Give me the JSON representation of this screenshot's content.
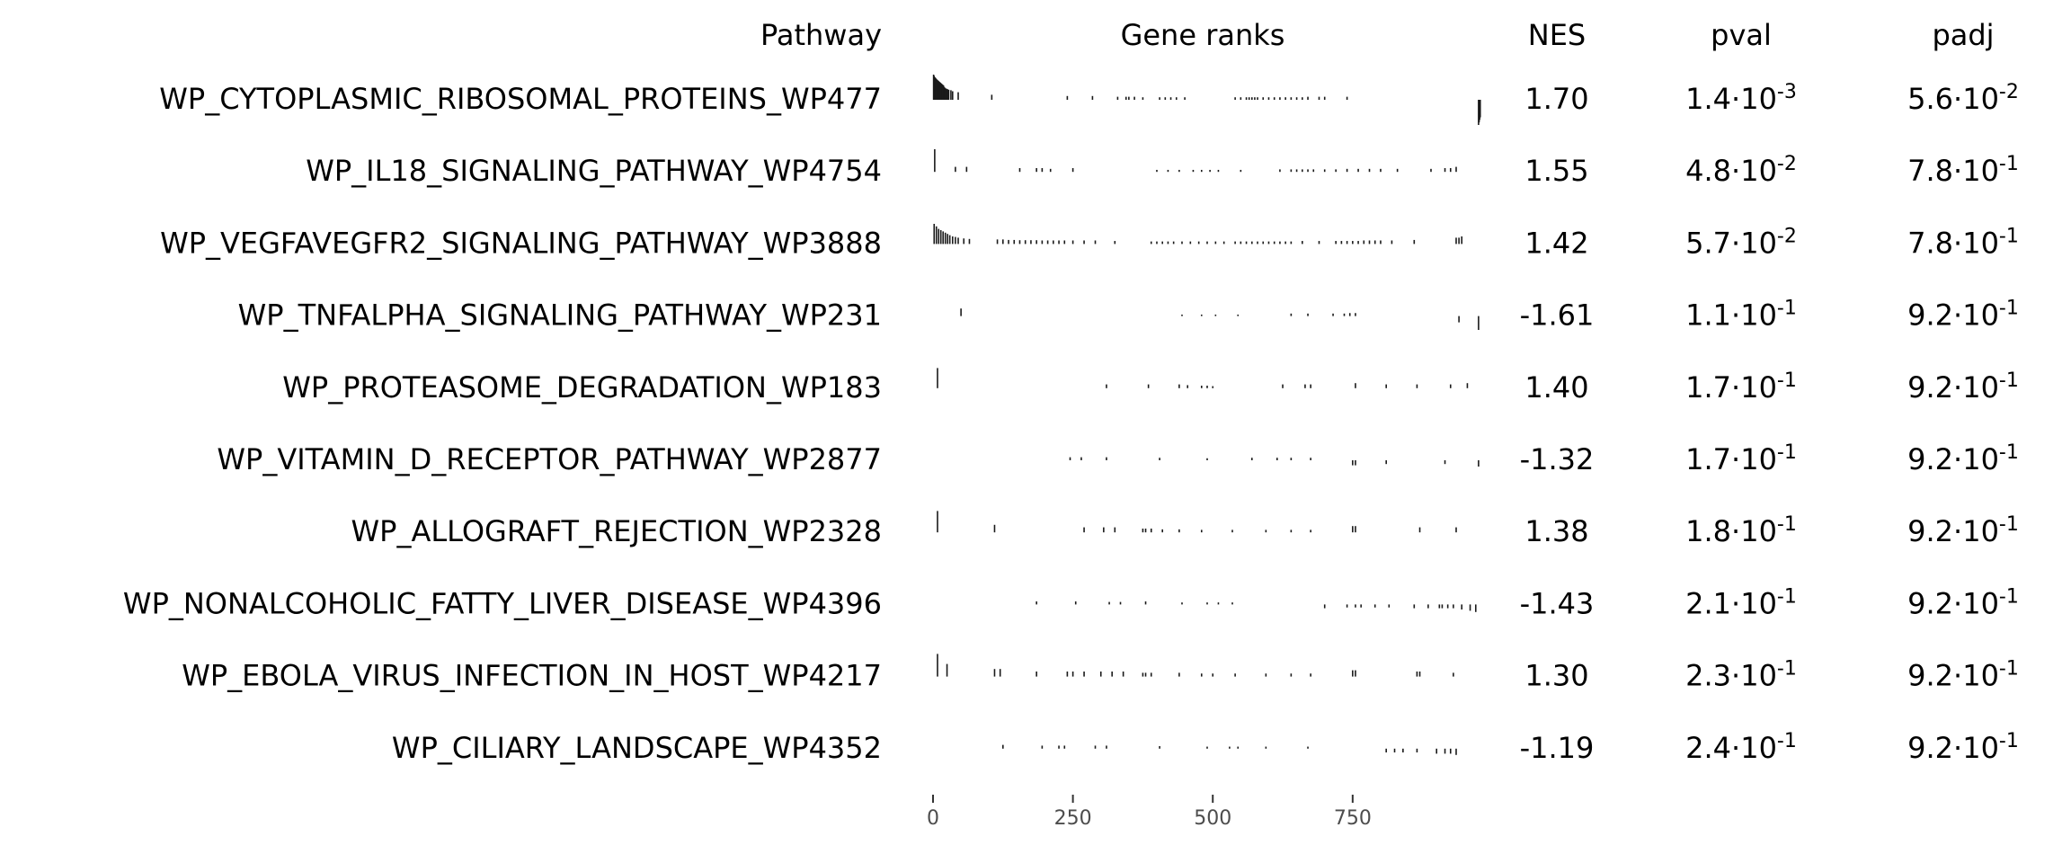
{
  "headers": {
    "pathway": "Pathway",
    "gene_ranks": "Gene ranks",
    "nes": "NES",
    "pval": "pval",
    "padj": "padj"
  },
  "chart_data": {
    "type": "table",
    "description_free": true,
    "x_axis": {
      "ticks": [
        0,
        250,
        500,
        750
      ],
      "range": [
        0,
        980
      ]
    },
    "rows": [
      {
        "pathway": "WP_CYTOPLASMIC_RIBOSOMAL_PROTEINS_WP477",
        "nes": "1.70",
        "pval_mant": "1.4",
        "pval_exp": "-3",
        "padj_mant": "5.6",
        "padj_exp": "-2",
        "direction": "up",
        "ranks": [
          1,
          2,
          3,
          4,
          5,
          6,
          7,
          8,
          9,
          10,
          11,
          12,
          13,
          14,
          15,
          16,
          17,
          18,
          19,
          20,
          21,
          22,
          24,
          26,
          28,
          32,
          35,
          45,
          105,
          240,
          285,
          330,
          345,
          350,
          360,
          375,
          405,
          415,
          425,
          435,
          450,
          540,
          550,
          560,
          565,
          570,
          575,
          580,
          590,
          600,
          610,
          620,
          630,
          640,
          650,
          660,
          670,
          690,
          700,
          740,
          975,
          976,
          977,
          978
        ],
        "heights": [
          1.0,
          0.95,
          0.9,
          0.88,
          0.85,
          0.82,
          0.8,
          0.78,
          0.76,
          0.74,
          0.72,
          0.7,
          0.68,
          0.66,
          0.64,
          0.62,
          0.6,
          0.58,
          0.56,
          0.5,
          0.48,
          0.46,
          0.44,
          0.42,
          0.4,
          0.38,
          0.34,
          0.3,
          0.2,
          0.15,
          0.15,
          0.12,
          0.12,
          0.12,
          0.12,
          0.1,
          0.1,
          0.1,
          0.1,
          0.1,
          0.1,
          0.1,
          0.1,
          0.1,
          0.1,
          0.1,
          0.1,
          0.1,
          0.1,
          0.1,
          0.1,
          0.1,
          0.1,
          0.1,
          0.1,
          0.1,
          0.12,
          0.12,
          0.12,
          0.12,
          -1.0,
          -0.9,
          -0.8,
          -0.7
        ]
      },
      {
        "pathway": "WP_IL18_SIGNALING_PATHWAY_WP4754",
        "nes": "1.55",
        "pval_mant": "4.8",
        "pval_exp": "-2",
        "padj_mant": "7.8",
        "padj_exp": "-1",
        "direction": "up",
        "ranks": [
          3,
          40,
          60,
          155,
          185,
          195,
          210,
          250,
          400,
          420,
          440,
          465,
          480,
          495,
          510,
          550,
          620,
          640,
          650,
          660,
          670,
          680,
          700,
          720,
          740,
          760,
          780,
          800,
          830,
          890,
          915,
          925,
          935
        ],
        "heights": [
          0.9,
          0.2,
          0.2,
          0.15,
          0.15,
          0.15,
          0.12,
          0.15,
          0.08,
          0.08,
          0.08,
          0.08,
          0.08,
          0.08,
          0.08,
          0.08,
          0.1,
          0.1,
          0.1,
          0.1,
          0.1,
          0.1,
          0.1,
          0.1,
          0.12,
          0.12,
          0.12,
          0.12,
          0.12,
          0.12,
          0.15,
          0.15,
          0.2
        ]
      },
      {
        "pathway": "WP_VEGFAVEGFR2_SIGNALING_PATHWAY_WP3888",
        "nes": "1.42",
        "pval_mant": "5.7",
        "pval_exp": "-2",
        "padj_mant": "7.8",
        "padj_exp": "-1",
        "direction": "up",
        "ranks": [
          2,
          6,
          10,
          14,
          18,
          22,
          26,
          30,
          35,
          40,
          45,
          55,
          65,
          115,
          125,
          135,
          145,
          155,
          165,
          175,
          185,
          195,
          205,
          215,
          225,
          235,
          250,
          270,
          290,
          325,
          390,
          400,
          410,
          420,
          430,
          445,
          460,
          475,
          490,
          505,
          520,
          540,
          550,
          560,
          570,
          580,
          590,
          600,
          610,
          620,
          630,
          640,
          660,
          690,
          720,
          730,
          740,
          750,
          760,
          770,
          780,
          790,
          800,
          820,
          860,
          935,
          940,
          945
        ],
        "heights": [
          0.8,
          0.7,
          0.6,
          0.55,
          0.5,
          0.45,
          0.4,
          0.35,
          0.3,
          0.28,
          0.25,
          0.22,
          0.2,
          0.18,
          0.18,
          0.16,
          0.16,
          0.15,
          0.15,
          0.15,
          0.15,
          0.14,
          0.14,
          0.14,
          0.14,
          0.14,
          0.14,
          0.14,
          0.14,
          0.12,
          0.1,
          0.1,
          0.1,
          0.1,
          0.1,
          0.1,
          0.1,
          0.1,
          0.1,
          0.1,
          0.1,
          0.1,
          0.1,
          0.1,
          0.1,
          0.1,
          0.1,
          0.1,
          0.1,
          0.1,
          0.1,
          0.1,
          0.12,
          0.12,
          0.12,
          0.12,
          0.12,
          0.12,
          0.12,
          0.14,
          0.14,
          0.14,
          0.14,
          0.14,
          0.16,
          0.25,
          0.25,
          0.3
        ]
      },
      {
        "pathway": "WP_TNFALPHA_SIGNALING_PATHWAY_WP231",
        "nes": "-1.61",
        "pval_mant": "1.1",
        "pval_exp": "-1",
        "padj_mant": "9.2",
        "padj_exp": "-1",
        "direction": "down",
        "ranks": [
          50,
          445,
          480,
          505,
          545,
          640,
          670,
          715,
          735,
          745,
          755,
          940,
          975
        ],
        "heights": [
          0.3,
          0.06,
          0.06,
          0.06,
          0.06,
          0.1,
          0.1,
          0.1,
          0.1,
          0.12,
          0.12,
          -0.25,
          -0.55
        ]
      },
      {
        "pathway": "WP_PROTEASOME_DEGRADATION_WP183",
        "nes": "1.40",
        "pval_mant": "1.7",
        "pval_exp": "-1",
        "padj_mant": "9.2",
        "padj_exp": "-1",
        "direction": "up",
        "ranks": [
          8,
          310,
          385,
          440,
          455,
          480,
          490,
          500,
          625,
          665,
          675,
          755,
          810,
          865,
          925,
          955
        ],
        "heights": [
          0.8,
          0.15,
          0.15,
          0.15,
          0.12,
          0.1,
          0.1,
          0.08,
          0.15,
          0.15,
          0.15,
          0.2,
          0.15,
          0.15,
          0.15,
          0.2
        ]
      },
      {
        "pathway": "WP_VITAMIN_D_RECEPTOR_PATHWAY_WP2877",
        "nes": "-1.32",
        "pval_mant": "1.7",
        "pval_exp": "-1",
        "padj_mant": "9.2",
        "padj_exp": "-1",
        "direction": "down",
        "ranks": [
          245,
          265,
          310,
          405,
          490,
          570,
          615,
          640,
          675,
          750,
          755,
          810,
          915,
          975
        ],
        "heights": [
          0.12,
          0.12,
          0.12,
          0.1,
          0.08,
          0.1,
          0.1,
          0.1,
          0.1,
          -0.2,
          -0.2,
          -0.15,
          -0.15,
          -0.25
        ]
      },
      {
        "pathway": "WP_ALLOGRAFT_REJECTION_WP2328",
        "nes": "1.38",
        "pval_mant": "1.8",
        "pval_exp": "-1",
        "padj_mant": "9.2",
        "padj_exp": "-1",
        "direction": "up",
        "ranks": [
          8,
          110,
          270,
          305,
          325,
          375,
          380,
          390,
          410,
          440,
          480,
          535,
          595,
          640,
          675,
          750,
          755,
          870,
          935
        ],
        "heights": [
          0.85,
          0.3,
          0.2,
          0.2,
          0.2,
          0.15,
          0.15,
          0.15,
          0.12,
          0.12,
          0.1,
          0.1,
          0.1,
          0.1,
          0.1,
          0.25,
          0.25,
          0.2,
          0.2
        ]
      },
      {
        "pathway": "WP_NONALCOHOLIC_FATTY_LIVER_DISEASE_WP4396",
        "nes": "-1.43",
        "pval_mant": "2.1",
        "pval_exp": "-1",
        "padj_mant": "9.2",
        "padj_exp": "-1",
        "direction": "down",
        "ranks": [
          185,
          255,
          315,
          335,
          380,
          445,
          490,
          510,
          535,
          700,
          740,
          755,
          765,
          790,
          815,
          860,
          885,
          905,
          910,
          920,
          930,
          945,
          960,
          970
        ],
        "heights": [
          0.12,
          0.12,
          0.1,
          0.1,
          0.12,
          0.08,
          0.08,
          0.08,
          0.08,
          -0.15,
          -0.12,
          -0.12,
          -0.12,
          -0.12,
          -0.12,
          -0.15,
          -0.15,
          -0.15,
          -0.15,
          -0.15,
          -0.15,
          -0.2,
          -0.25,
          -0.3
        ]
      },
      {
        "pathway": "WP_EBOLA_VIRUS_INFECTION_IN_HOST_WP4217",
        "nes": "1.30",
        "pval_mant": "2.3",
        "pval_exp": "-1",
        "padj_mant": "9.2",
        "padj_exp": "-1",
        "direction": "up",
        "ranks": [
          8,
          25,
          110,
          120,
          185,
          240,
          250,
          270,
          300,
          320,
          340,
          375,
          380,
          390,
          440,
          480,
          500,
          540,
          595,
          640,
          675,
          750,
          755,
          865,
          870,
          930
        ],
        "heights": [
          0.9,
          0.5,
          0.3,
          0.3,
          0.2,
          0.2,
          0.2,
          0.2,
          0.2,
          0.2,
          0.2,
          0.15,
          0.15,
          0.15,
          0.15,
          0.12,
          0.12,
          0.12,
          0.12,
          0.12,
          0.12,
          0.25,
          0.25,
          0.2,
          0.2,
          0.15
        ]
      },
      {
        "pathway": "WP_CILIARY_LANDSCAPE_WP4352",
        "nes": "-1.19",
        "pval_mant": "2.4",
        "pval_exp": "-1",
        "padj_mant": "9.2",
        "padj_exp": "-1",
        "direction": "down",
        "ranks": [
          125,
          195,
          225,
          235,
          290,
          310,
          405,
          490,
          530,
          545,
          595,
          670,
          810,
          825,
          840,
          865,
          900,
          915,
          925,
          935
        ],
        "heights": [
          0.15,
          0.12,
          0.12,
          0.12,
          0.12,
          0.12,
          0.1,
          0.08,
          0.08,
          0.08,
          0.08,
          0.08,
          -0.15,
          -0.15,
          -0.15,
          -0.15,
          -0.2,
          -0.2,
          -0.2,
          -0.25
        ]
      }
    ]
  }
}
